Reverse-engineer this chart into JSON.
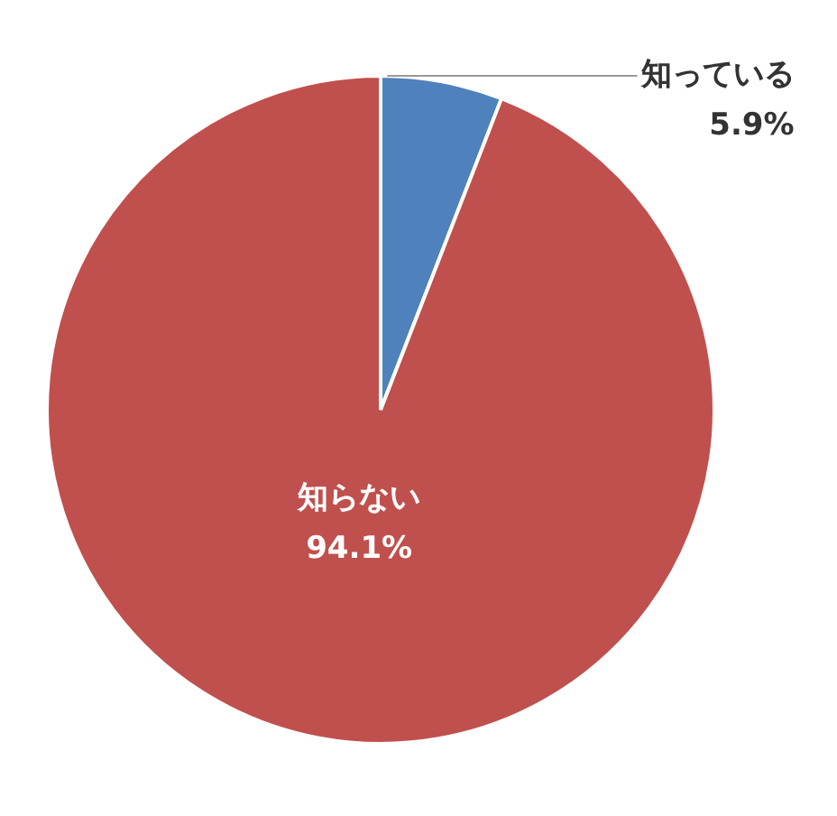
{
  "chart_data": {
    "type": "pie",
    "categories": [
      "知っている",
      "知らない"
    ],
    "values": [
      5.9,
      94.1
    ],
    "colors": [
      "#4f81bd",
      "#c0504d"
    ],
    "value_labels": [
      "5.9%",
      "94.1%"
    ],
    "legend": false
  }
}
